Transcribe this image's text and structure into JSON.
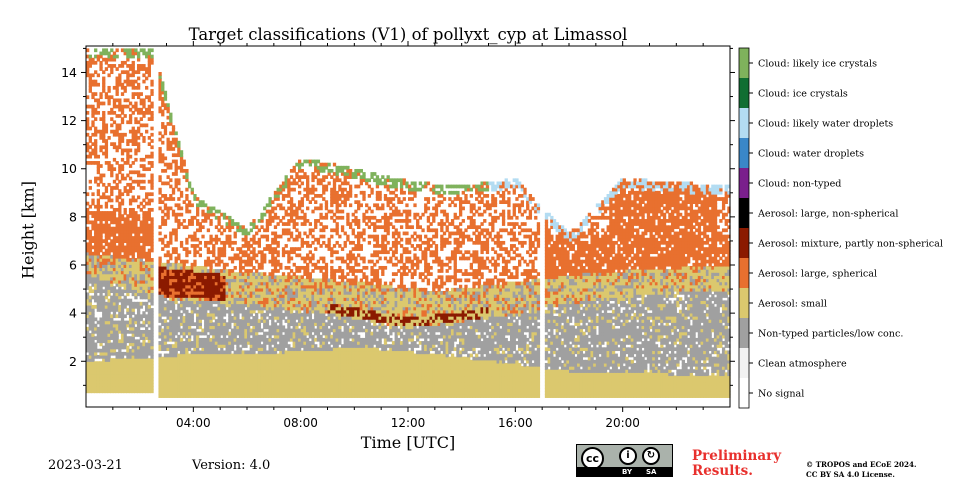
{
  "chart_data": {
    "type": "heatmap",
    "title": "Target classifications (V1) of pollyxt_cyp at Limassol",
    "xlabel": "Time [UTC]",
    "ylabel": "Height [km]",
    "xlim": [
      0,
      24
    ],
    "ylim": [
      0.1,
      15.1
    ],
    "xticks": [
      4,
      8,
      12,
      16,
      20
    ],
    "xtick_labels": [
      "04:00",
      "08:00",
      "12:00",
      "16:00",
      "20:00"
    ],
    "yticks": [
      2,
      4,
      6,
      8,
      10,
      12,
      14
    ],
    "ytick_labels": [
      "2",
      "4",
      "6",
      "8",
      "10",
      "12",
      "14"
    ],
    "data_gaps_hours": [
      [
        2.5,
        2.7
      ],
      [
        16.9,
        17.05
      ]
    ],
    "classes": [
      {
        "label": "No signal",
        "color": "#ffffff"
      },
      {
        "label": "Clean atmosphere",
        "color": "#f2f2f2"
      },
      {
        "label": "Non-typed particles/low conc.",
        "color": "#a0a0a0"
      },
      {
        "label": "Aerosol: small",
        "color": "#dbc86e"
      },
      {
        "label": "Aerosol: large, spherical",
        "color": "#e8702f"
      },
      {
        "label": "Aerosol: mixture, partly non-spherical",
        "color": "#8b1a00"
      },
      {
        "label": "Aerosol: large, non-spherical",
        "color": "#000000"
      },
      {
        "label": "Cloud: non-typed",
        "color": "#7a1f8c"
      },
      {
        "label": "Cloud: water droplets",
        "color": "#3a87c8"
      },
      {
        "label": "Cloud: likely water droplets",
        "color": "#b3dcf2"
      },
      {
        "label": "Cloud: ice crystals",
        "color": "#106e32"
      },
      {
        "label": "Cloud: likely ice crystals",
        "color": "#7fb25c"
      }
    ]
  },
  "footer": {
    "date": "2023-03-21",
    "version": "Version: 4.0",
    "preliminary_line1": "Preliminary",
    "preliminary_line2": "Results.",
    "copyright_line1": "© TROPOS and ECoE 2024.",
    "copyright_line2": "CC BY SA 4.0 License.",
    "cc_badge": "cc",
    "cc_by": "BY",
    "cc_sa": "SA"
  }
}
